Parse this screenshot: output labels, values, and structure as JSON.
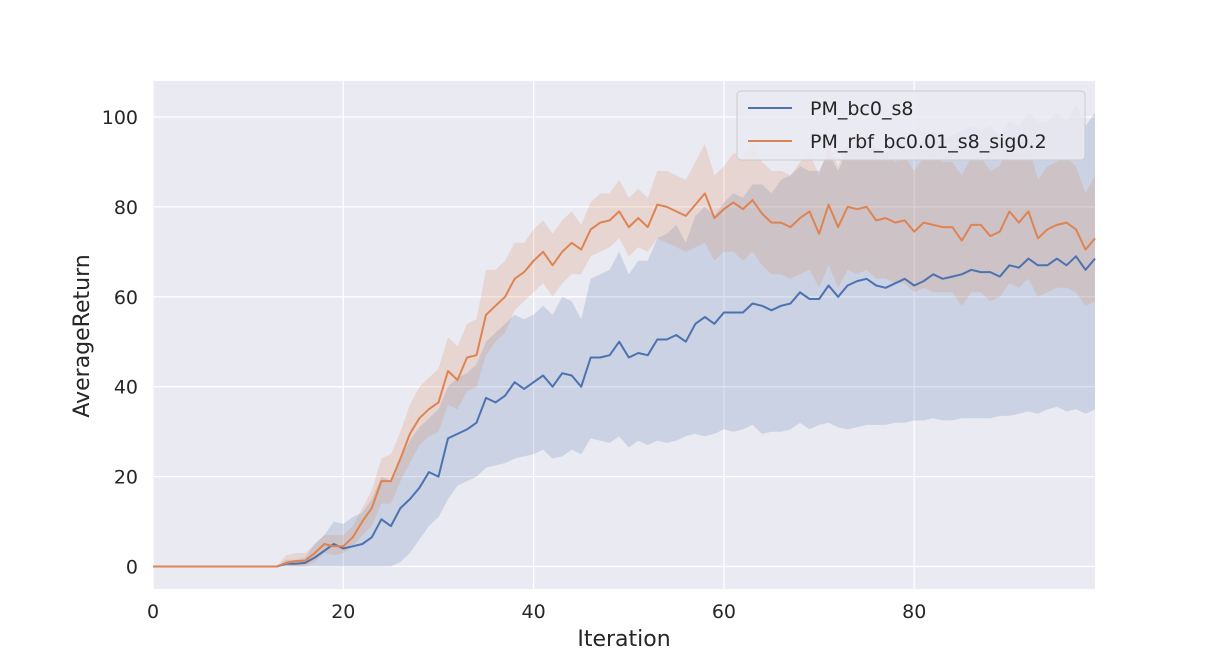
{
  "chart_data": {
    "type": "line",
    "title": "",
    "xlabel": "Iteration",
    "ylabel": "AverageReturn",
    "xlim": [
      0,
      99
    ],
    "ylim": [
      -5,
      108
    ],
    "xticks": [
      "0",
      "20",
      "40",
      "60",
      "80"
    ],
    "yticks": [
      "0",
      "20",
      "40",
      "60",
      "80",
      "100"
    ],
    "grid": true,
    "legend_position": "top-right",
    "colors": {
      "background": "#eaeaf2",
      "grid": "#ffffff",
      "series1": "#4c72b0",
      "series2": "#dd8452"
    },
    "x": [
      0,
      1,
      2,
      3,
      4,
      5,
      6,
      7,
      8,
      9,
      10,
      11,
      12,
      13,
      14,
      15,
      16,
      17,
      18,
      19,
      20,
      21,
      22,
      23,
      24,
      25,
      26,
      27,
      28,
      29,
      30,
      31,
      32,
      33,
      34,
      35,
      36,
      37,
      38,
      39,
      40,
      41,
      42,
      43,
      44,
      45,
      46,
      47,
      48,
      49,
      50,
      51,
      52,
      53,
      54,
      55,
      56,
      57,
      58,
      59,
      60,
      61,
      62,
      63,
      64,
      65,
      66,
      67,
      68,
      69,
      70,
      71,
      72,
      73,
      74,
      75,
      76,
      77,
      78,
      79,
      80,
      81,
      82,
      83,
      84,
      85,
      86,
      87,
      88,
      89,
      90,
      91,
      92,
      93,
      94,
      95,
      96,
      97,
      98,
      99
    ],
    "series": [
      {
        "name": "PM_bc0_s8",
        "values": [
          0,
          0,
          0,
          0,
          0,
          0,
          0,
          0,
          0,
          0,
          0,
          0,
          0,
          0,
          0.6,
          0.6,
          0.8,
          2,
          3.5,
          5,
          4,
          4.5,
          5,
          6.5,
          10.5,
          9,
          13,
          15,
          17.5,
          21,
          20,
          28.5,
          29.5,
          30.5,
          32,
          37.5,
          36.5,
          38,
          41,
          39.5,
          41,
          42.5,
          40,
          43,
          42.5,
          40,
          46.5,
          46.5,
          47,
          50,
          46.5,
          47.5,
          47,
          50.5,
          50.5,
          51.5,
          50,
          54,
          55.5,
          54,
          56.5,
          56.5,
          56.5,
          58.5,
          58,
          57,
          58,
          58.5,
          61,
          59.5,
          59.5,
          62.5,
          60,
          62.5,
          63.5,
          64,
          62.5,
          62,
          63,
          64,
          62.5,
          63.5,
          65,
          64,
          64.5,
          65,
          66,
          65.5,
          65.5,
          64.5,
          67,
          66.5,
          68.5,
          67,
          67,
          68.5,
          67,
          69,
          66,
          68.5
        ],
        "lower": [
          0,
          0,
          0,
          0,
          0,
          0,
          0,
          0,
          0,
          0,
          0,
          0,
          0,
          0,
          0,
          0,
          0,
          0,
          0,
          0,
          0,
          0,
          0,
          0,
          0,
          0,
          1,
          3,
          6,
          9,
          11,
          15,
          18,
          19,
          20,
          22,
          22.5,
          23,
          24,
          24.5,
          25,
          26,
          24,
          24.5,
          26,
          25,
          28.5,
          28,
          27.5,
          29,
          26.5,
          28,
          27,
          28,
          27.5,
          28,
          29,
          29.5,
          29,
          29.5,
          30.5,
          30,
          30.5,
          31.5,
          29.5,
          30,
          30,
          30.5,
          32,
          30.5,
          31.5,
          32,
          31,
          30.5,
          31,
          31.5,
          31.5,
          31.5,
          32,
          32,
          32.5,
          32.5,
          33,
          32.5,
          32.5,
          33,
          33,
          33,
          33,
          33.5,
          33.5,
          34,
          34.5,
          34,
          35,
          35.5,
          34.5,
          35,
          34,
          35
        ],
        "upper": [
          0,
          0,
          0,
          0,
          0,
          0,
          0,
          0,
          0,
          0,
          0,
          0,
          0,
          0,
          1.5,
          1.5,
          2,
          5,
          7,
          10,
          9.5,
          11,
          12,
          15,
          20,
          19,
          24,
          28,
          31,
          33,
          35,
          40,
          42,
          43,
          45,
          50,
          52,
          54,
          56,
          55,
          56,
          58,
          56,
          60,
          59,
          55,
          64,
          65,
          66,
          70,
          65,
          68,
          68,
          73,
          74,
          76,
          72,
          78,
          80,
          78,
          81,
          83,
          82,
          85,
          85,
          83,
          86,
          87,
          89,
          88,
          88,
          92,
          88,
          93,
          94,
          95,
          93,
          92,
          94,
          96,
          93,
          95,
          97,
          95,
          96,
          97,
          98,
          97,
          98,
          96,
          99,
          98,
          101,
          99,
          99,
          101,
          99,
          103,
          98,
          101
        ]
      },
      {
        "name": "PM_rbf_bc0.01_s8_sig0.2",
        "values": [
          0,
          0,
          0,
          0,
          0,
          0,
          0,
          0,
          0,
          0,
          0,
          0,
          0,
          0,
          0.8,
          1.2,
          1.3,
          3,
          5,
          4.5,
          4.5,
          6.5,
          10,
          13,
          19,
          19,
          24,
          29.5,
          33,
          35,
          36.5,
          43.5,
          41.5,
          46.5,
          47,
          56,
          58,
          60,
          64,
          65.5,
          68,
          70,
          67,
          70,
          72,
          70.5,
          75,
          76.5,
          77,
          79,
          75.5,
          77.5,
          75.5,
          80.5,
          80,
          79,
          78,
          80.5,
          83,
          77.5,
          79.5,
          81,
          79.5,
          81.5,
          78.5,
          76.5,
          76.5,
          75.5,
          77.5,
          79,
          74,
          80.5,
          75.5,
          80,
          79.5,
          80,
          77,
          77.5,
          76.5,
          77,
          74.5,
          76.5,
          76,
          75.5,
          75.5,
          72.5,
          76,
          76,
          73.5,
          74.5,
          79,
          76.5,
          79,
          73,
          75,
          76,
          76.5,
          75,
          70.5,
          73
        ],
        "lower": [
          0,
          0,
          0,
          0,
          0,
          0,
          0,
          0,
          0,
          0,
          0,
          0,
          0,
          0,
          0,
          0,
          0,
          1,
          3,
          2.5,
          3,
          4.5,
          7,
          9,
          14,
          14,
          19,
          23,
          27,
          29,
          30,
          36,
          35,
          39,
          40,
          47,
          50,
          52,
          57,
          59,
          61,
          63,
          60,
          63,
          65,
          65,
          69,
          70,
          71,
          73,
          69,
          71,
          70,
          73,
          72,
          71,
          70,
          71,
          72,
          68,
          70,
          70,
          68,
          70,
          67,
          65,
          65,
          64,
          65,
          66,
          62,
          67,
          62,
          66,
          65,
          66,
          64,
          64,
          63,
          63,
          61,
          62,
          61,
          61,
          61,
          58,
          61,
          61,
          59,
          60,
          63,
          62,
          64,
          60,
          61,
          62,
          62,
          61,
          58,
          59
        ],
        "upper": [
          0,
          0,
          0,
          0,
          0,
          0,
          0,
          0,
          0,
          0,
          0,
          0,
          0,
          0,
          2.5,
          3,
          3,
          5,
          7,
          7,
          7,
          9,
          13,
          17,
          24,
          25,
          30,
          36,
          40,
          42,
          44,
          51,
          49,
          54,
          55,
          66,
          66,
          68,
          72,
          72,
          75,
          77,
          74,
          77,
          79,
          76,
          81,
          83,
          83,
          86,
          82,
          84,
          82,
          88,
          88,
          87,
          86,
          90,
          94,
          87,
          89,
          92,
          91,
          94,
          90,
          88,
          88,
          87,
          90,
          92,
          87,
          94,
          89,
          95,
          95,
          95,
          91,
          92,
          90,
          91,
          88,
          91,
          91,
          90,
          90,
          87,
          91,
          91,
          88,
          89,
          95,
          91,
          94,
          86,
          89,
          90,
          91,
          89,
          83,
          87
        ]
      }
    ]
  }
}
